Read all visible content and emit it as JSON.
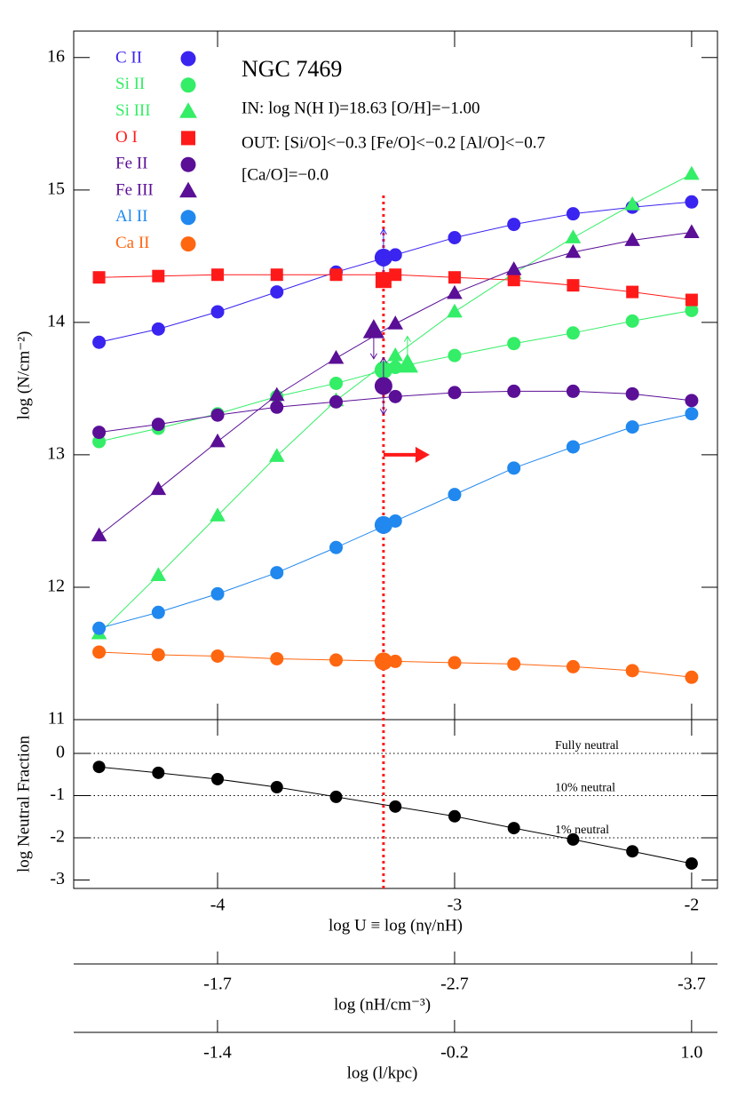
{
  "chart_data": [
    {
      "type": "line",
      "ylabel": "log (N/cm⁻²)",
      "annotations": [
        "NGC 7469",
        "IN: log N(H I)=18.63 [O/H]=−1.00",
        "OUT: [Si/O]<−0.3 [Fe/O]<−0.2 [Al/O]<−0.7",
        "[Ca/O]=−0.0"
      ],
      "x": [
        -4.5,
        -4.25,
        -4.0,
        -3.75,
        -3.5,
        -3.25,
        -3.0,
        -2.75,
        -2.5,
        -2.25,
        -2.0
      ],
      "xlim": [
        -4.607,
        -1.891
      ],
      "ylim": [
        11,
        16.2
      ],
      "yticks": [
        11,
        12,
        13,
        14,
        15,
        16
      ],
      "observed_x": -3.3,
      "observed_color": "#ff1a1a",
      "arrow_y": 13.0,
      "series": [
        {
          "name": "C II",
          "color": "#3a24f0",
          "marker": "circle",
          "values": [
            13.85,
            13.95,
            14.08,
            14.23,
            14.38,
            14.51,
            14.64,
            14.74,
            14.82,
            14.87,
            14.91
          ],
          "observed": 14.49,
          "limit": "range"
        },
        {
          "name": "Si II",
          "color": "#33ee66",
          "marker": "circle",
          "values": [
            13.1,
            13.2,
            13.31,
            13.44,
            13.54,
            13.66,
            13.75,
            13.84,
            13.92,
            14.01,
            14.09
          ],
          "observed": 13.64
        },
        {
          "name": "Si III",
          "color": "#33ee66",
          "marker": "triangle",
          "values": [
            11.65,
            12.09,
            12.54,
            12.99,
            13.41,
            13.75,
            14.08,
            14.37,
            14.64,
            14.89,
            15.12
          ],
          "observed": 13.68,
          "limit": "lower"
        },
        {
          "name": "O I",
          "color": "#ff1a1a",
          "marker": "square",
          "values": [
            14.34,
            14.35,
            14.36,
            14.36,
            14.36,
            14.36,
            14.34,
            14.32,
            14.28,
            14.23,
            14.17
          ],
          "observed": 14.32
        },
        {
          "name": "Fe II",
          "color": "#5a0f96",
          "marker": "circle",
          "values": [
            13.17,
            13.23,
            13.3,
            13.36,
            13.4,
            13.44,
            13.47,
            13.48,
            13.48,
            13.46,
            13.41
          ],
          "observed": 13.52,
          "limit": "range"
        },
        {
          "name": "Fe III",
          "color": "#5a0f96",
          "marker": "triangle",
          "values": [
            12.39,
            12.74,
            13.1,
            13.45,
            13.73,
            13.99,
            14.22,
            14.4,
            14.53,
            14.62,
            14.68
          ],
          "observed": 13.94,
          "limit": "upper"
        },
        {
          "name": "Al II",
          "color": "#2088ee",
          "marker": "circle",
          "values": [
            11.69,
            11.81,
            11.95,
            12.11,
            12.3,
            12.5,
            12.7,
            12.9,
            13.06,
            13.21,
            13.31
          ],
          "observed": 12.47
        },
        {
          "name": "Ca II",
          "color": "#ff6610",
          "marker": "circle",
          "values": [
            11.51,
            11.49,
            11.48,
            11.46,
            11.45,
            11.44,
            11.43,
            11.42,
            11.4,
            11.37,
            11.32
          ],
          "observed": 11.44
        }
      ]
    },
    {
      "type": "line",
      "ylabel": "log Neutral Fraction",
      "xlabel": "log U ≡ log (nγ/nH)",
      "x": [
        -4.5,
        -4.25,
        -4.0,
        -3.75,
        -3.5,
        -3.25,
        -3.0,
        -2.75,
        -2.5,
        -2.25,
        -2.0
      ],
      "values": [
        -0.32,
        -0.46,
        -0.61,
        -0.8,
        -1.03,
        -1.26,
        -1.49,
        -1.77,
        -2.04,
        -2.32,
        -2.61
      ],
      "color": "#000000",
      "xlim": [
        -4.607,
        -1.891
      ],
      "xticks": [
        -4,
        -3,
        -2
      ],
      "ylim": [
        -3.2,
        0.8
      ],
      "yticks": [
        -3,
        -2,
        -1,
        0
      ],
      "reference_lines": [
        {
          "value": 0,
          "label": "Fully neutral"
        },
        {
          "value": -1,
          "label": "10% neutral"
        },
        {
          "value": -2,
          "label": "1% neutral"
        }
      ],
      "secondary_axes": [
        {
          "label": "log (nH/cm⁻³)",
          "xlim": [
            -1.093,
            -3.809
          ],
          "xticks": [
            -1.7,
            -2.7,
            -3.7
          ]
        },
        {
          "label": "log (l/kpc)",
          "xlim": [
            -2.128,
            1.131
          ],
          "xticks": [
            -1.4,
            -0.2,
            {
              "value": 1.0,
              "label": "1.0"
            }
          ]
        }
      ]
    }
  ]
}
